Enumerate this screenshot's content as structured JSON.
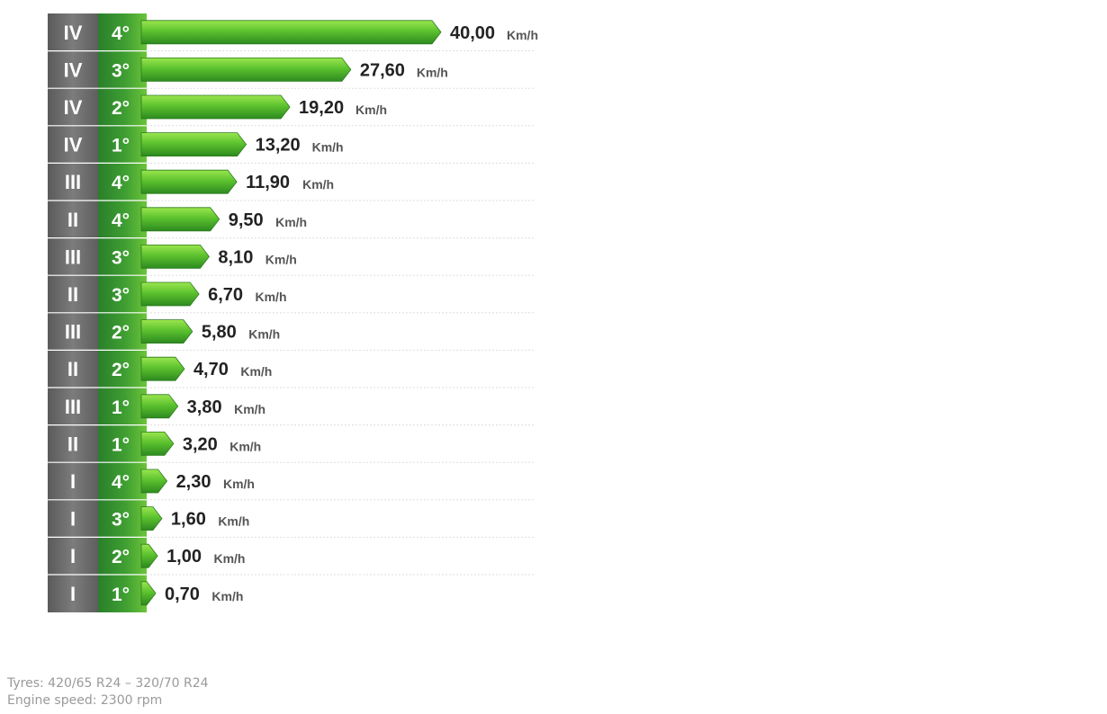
{
  "chart_data": {
    "type": "bar",
    "orientation": "horizontal",
    "unit": "Km/h",
    "rows": [
      {
        "range": "IV",
        "gear": "4°",
        "value": 40.0,
        "label": "40,00"
      },
      {
        "range": "IV",
        "gear": "3°",
        "value": 27.6,
        "label": "27,60"
      },
      {
        "range": "IV",
        "gear": "2°",
        "value": 19.2,
        "label": "19,20"
      },
      {
        "range": "IV",
        "gear": "1°",
        "value": 13.2,
        "label": "13,20"
      },
      {
        "range": "III",
        "gear": "4°",
        "value": 11.9,
        "label": "11,90"
      },
      {
        "range": "II",
        "gear": "4°",
        "value": 9.5,
        "label": "9,50"
      },
      {
        "range": "III",
        "gear": "3°",
        "value": 8.1,
        "label": "8,10"
      },
      {
        "range": "II",
        "gear": "3°",
        "value": 6.7,
        "label": "6,70"
      },
      {
        "range": "III",
        "gear": "2°",
        "value": 5.8,
        "label": "5,80"
      },
      {
        "range": "II",
        "gear": "2°",
        "value": 4.7,
        "label": "4,70"
      },
      {
        "range": "III",
        "gear": "1°",
        "value": 3.8,
        "label": "3,80"
      },
      {
        "range": "II",
        "gear": "1°",
        "value": 3.2,
        "label": "3,20"
      },
      {
        "range": "I",
        "gear": "4°",
        "value": 2.3,
        "label": "2,30"
      },
      {
        "range": "I",
        "gear": "3°",
        "value": 1.6,
        "label": "1,60"
      },
      {
        "range": "I",
        "gear": "2°",
        "value": 1.0,
        "label": "1,00"
      },
      {
        "range": "I",
        "gear": "1°",
        "value": 0.7,
        "label": "0,70"
      }
    ],
    "colors": {
      "range_column": "#6e6e6e",
      "gear_column": "#2e8b2e",
      "bar_light": "#8ee04a",
      "bar_dark": "#2f8f22"
    }
  },
  "footer": {
    "tyres": "Tyres: 420/65 R24 – 320/70 R24",
    "engine": "Engine speed: 2300 rpm"
  }
}
